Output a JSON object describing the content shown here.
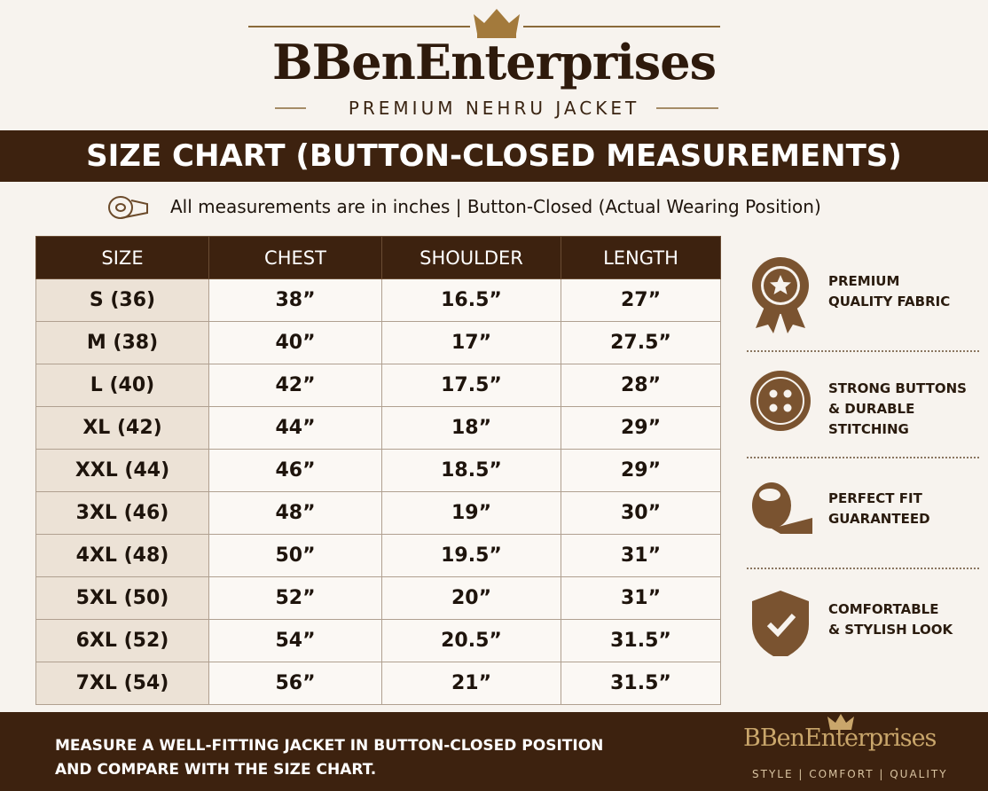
{
  "header": {
    "brand": "BBenEnterprises",
    "tagline": "PREMIUM NEHRU JACKET"
  },
  "banner": {
    "title": "SIZE CHART (BUTTON-CLOSED MEASUREMENTS)"
  },
  "note": "All measurements are in inches | Button-Closed (Actual Wearing Position)",
  "table": {
    "columns": [
      "SIZE",
      "CHEST",
      "SHOULDER",
      "LENGTH"
    ],
    "rows": [
      [
        "S (36)",
        "38”",
        "16.5”",
        "27”"
      ],
      [
        "M (38)",
        "40”",
        "17”",
        "27.5”"
      ],
      [
        "L (40)",
        "42”",
        "17.5”",
        "28”"
      ],
      [
        "XL (42)",
        "44”",
        "18”",
        "29”"
      ],
      [
        "XXL (44)",
        "46”",
        "18.5”",
        "29”"
      ],
      [
        "3XL (46)",
        "48”",
        "19”",
        "30”"
      ],
      [
        "4XL (48)",
        "50”",
        "19.5”",
        "31”"
      ],
      [
        "5XL (50)",
        "52”",
        "20”",
        "31”"
      ],
      [
        "6XL (52)",
        "54”",
        "20.5”",
        "31.5”"
      ],
      [
        "7XL (54)",
        "56”",
        "21”",
        "31.5”"
      ]
    ]
  },
  "features": [
    [
      "PREMIUM",
      "QUALITY FABRIC"
    ],
    [
      "STRONG BUTTONS",
      "& DURABLE STITCHING"
    ],
    [
      "PERFECT FIT",
      "GUARANTEED"
    ],
    [
      "COMFORTABLE",
      "& STYLISH LOOK"
    ]
  ],
  "footer": {
    "lines": [
      "MEASURE A WELL-FITTING JACKET IN BUTTON-CLOSED POSITION",
      "AND COMPARE WITH THE SIZE CHART."
    ],
    "brand": "BBenEnterprises",
    "tagline": "STYLE | COMFORT | QUALITY"
  }
}
